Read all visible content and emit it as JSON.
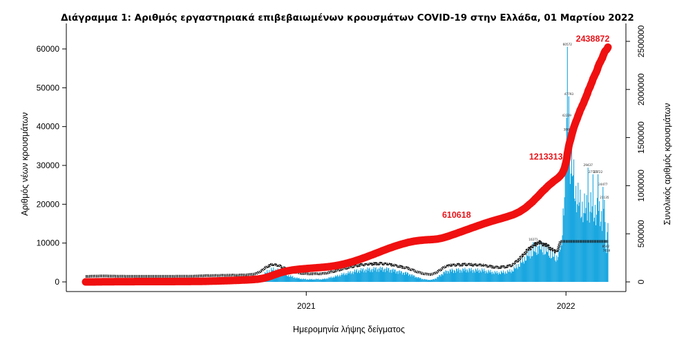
{
  "chart_data": {
    "type": "bar",
    "title": "Διάγραμμα 1: Αριθμός εργαστηριακά επιβεβαιωμένων κρουσμάτων COVID-19 στην Ελλάδα, 01 Μαρτίου 2022",
    "xlabel": "Ημερομηνία λήψης δείγματος",
    "ylabel": "Αριθμός νέων κρουσμάτων",
    "ylabel_right": "Συνολικός αριθμός κρουσμάτων",
    "x_range": [
      "2020-02-26",
      "2022-03-01"
    ],
    "ylim": [
      0,
      65000
    ],
    "ylim_right": [
      0,
      2600000
    ],
    "x_ticks": [
      {
        "date": "2021-01-01",
        "label": "2021"
      },
      {
        "date": "2022-01-01",
        "label": "2022"
      }
    ],
    "y_ticks": [
      "0",
      "10000",
      "20000",
      "30000",
      "40000",
      "50000",
      "60000"
    ],
    "y_ticks_right": [
      "0",
      "500000",
      "1000000",
      "1500000",
      "2000000",
      "2500000"
    ],
    "colors": {
      "bars": "#1aa7e0",
      "cumulative": "#f01010",
      "moving_average": "#1a1a1a"
    },
    "daily_new_cases_weekly": [
      {
        "week_start": "2020-02-26",
        "value": 5
      },
      {
        "week_start": "2020-03-04",
        "value": 45
      },
      {
        "week_start": "2020-03-11",
        "value": 95
      },
      {
        "week_start": "2020-03-18",
        "value": 110
      },
      {
        "week_start": "2020-03-25",
        "value": 95
      },
      {
        "week_start": "2020-04-01",
        "value": 70
      },
      {
        "week_start": "2020-04-08",
        "value": 45
      },
      {
        "week_start": "2020-04-15",
        "value": 30
      },
      {
        "week_start": "2020-04-22",
        "value": 20
      },
      {
        "week_start": "2020-04-29",
        "value": 15
      },
      {
        "week_start": "2020-05-06",
        "value": 10
      },
      {
        "week_start": "2020-05-13",
        "value": 12
      },
      {
        "week_start": "2020-05-20",
        "value": 10
      },
      {
        "week_start": "2020-05-27",
        "value": 10
      },
      {
        "week_start": "2020-06-03",
        "value": 12
      },
      {
        "week_start": "2020-06-10",
        "value": 15
      },
      {
        "week_start": "2020-06-17",
        "value": 20
      },
      {
        "week_start": "2020-06-24",
        "value": 25
      },
      {
        "week_start": "2020-07-01",
        "value": 30
      },
      {
        "week_start": "2020-07-08",
        "value": 35
      },
      {
        "week_start": "2020-07-15",
        "value": 40
      },
      {
        "week_start": "2020-07-22",
        "value": 55
      },
      {
        "week_start": "2020-07-29",
        "value": 90
      },
      {
        "week_start": "2020-08-05",
        "value": 150
      },
      {
        "week_start": "2020-08-12",
        "value": 210
      },
      {
        "week_start": "2020-08-19",
        "value": 230
      },
      {
        "week_start": "2020-08-26",
        "value": 240
      },
      {
        "week_start": "2020-09-02",
        "value": 260
      },
      {
        "week_start": "2020-09-09",
        "value": 290
      },
      {
        "week_start": "2020-09-16",
        "value": 320
      },
      {
        "week_start": "2020-09-23",
        "value": 330
      },
      {
        "week_start": "2020-09-30",
        "value": 360
      },
      {
        "week_start": "2020-10-07",
        "value": 420
      },
      {
        "week_start": "2020-10-14",
        "value": 520
      },
      {
        "week_start": "2020-10-21",
        "value": 800
      },
      {
        "week_start": "2020-10-28",
        "value": 1600
      },
      {
        "week_start": "2020-11-04",
        "value": 2600
      },
      {
        "week_start": "2020-11-11",
        "value": 3100
      },
      {
        "week_start": "2020-11-18",
        "value": 2900
      },
      {
        "week_start": "2020-11-25",
        "value": 2400
      },
      {
        "week_start": "2020-12-02",
        "value": 1700
      },
      {
        "week_start": "2020-12-09",
        "value": 1300
      },
      {
        "week_start": "2020-12-16",
        "value": 950
      },
      {
        "week_start": "2020-12-23",
        "value": 750
      },
      {
        "week_start": "2020-12-30",
        "value": 650
      },
      {
        "week_start": "2021-01-06",
        "value": 650
      },
      {
        "week_start": "2021-01-13",
        "value": 700
      },
      {
        "week_start": "2021-01-20",
        "value": 650
      },
      {
        "week_start": "2021-01-27",
        "value": 900
      },
      {
        "week_start": "2021-02-03",
        "value": 1200
      },
      {
        "week_start": "2021-02-10",
        "value": 1500
      },
      {
        "week_start": "2021-02-17",
        "value": 1900
      },
      {
        "week_start": "2021-02-24",
        "value": 2200
      },
      {
        "week_start": "2021-03-03",
        "value": 2500
      },
      {
        "week_start": "2021-03-10",
        "value": 2800
      },
      {
        "week_start": "2021-03-17",
        "value": 3000
      },
      {
        "week_start": "2021-03-24",
        "value": 3100
      },
      {
        "week_start": "2021-03-31",
        "value": 3200
      },
      {
        "week_start": "2021-04-07",
        "value": 3300
      },
      {
        "week_start": "2021-04-14",
        "value": 3300
      },
      {
        "week_start": "2021-04-21",
        "value": 3200
      },
      {
        "week_start": "2021-04-28",
        "value": 3000
      },
      {
        "week_start": "2021-05-05",
        "value": 2700
      },
      {
        "week_start": "2021-05-12",
        "value": 2400
      },
      {
        "week_start": "2021-05-19",
        "value": 2200
      },
      {
        "week_start": "2021-05-26",
        "value": 1700
      },
      {
        "week_start": "2021-06-02",
        "value": 1200
      },
      {
        "week_start": "2021-06-09",
        "value": 800
      },
      {
        "week_start": "2021-06-16",
        "value": 550
      },
      {
        "week_start": "2021-06-23",
        "value": 500
      },
      {
        "week_start": "2021-06-30",
        "value": 1000
      },
      {
        "week_start": "2021-07-07",
        "value": 2000
      },
      {
        "week_start": "2021-07-14",
        "value": 2700
      },
      {
        "week_start": "2021-07-21",
        "value": 2900
      },
      {
        "week_start": "2021-07-28",
        "value": 3000
      },
      {
        "week_start": "2021-08-04",
        "value": 3000
      },
      {
        "week_start": "2021-08-11",
        "value": 3100
      },
      {
        "week_start": "2021-08-18",
        "value": 3000
      },
      {
        "week_start": "2021-08-25",
        "value": 2900
      },
      {
        "week_start": "2021-09-01",
        "value": 3000
      },
      {
        "week_start": "2021-09-08",
        "value": 2700
      },
      {
        "week_start": "2021-09-15",
        "value": 2500
      },
      {
        "week_start": "2021-09-22",
        "value": 2300
      },
      {
        "week_start": "2021-09-29",
        "value": 2400
      },
      {
        "week_start": "2021-10-06",
        "value": 2500
      },
      {
        "week_start": "2021-10-13",
        "value": 2800
      },
      {
        "week_start": "2021-10-20",
        "value": 3800
      },
      {
        "week_start": "2021-10-27",
        "value": 5000
      },
      {
        "week_start": "2021-11-03",
        "value": 6500
      },
      {
        "week_start": "2021-11-10",
        "value": 7500
      },
      {
        "week_start": "2021-11-17",
        "value": 8300
      },
      {
        "week_start": "2021-11-24",
        "value": 8500
      },
      {
        "week_start": "2021-12-01",
        "value": 8000
      },
      {
        "week_start": "2021-12-08",
        "value": 7000
      },
      {
        "week_start": "2021-12-15",
        "value": 6000
      },
      {
        "week_start": "2021-12-22",
        "value": 9000
      },
      {
        "week_start": "2021-12-29",
        "value": 32000
      },
      {
        "week_start": "2022-01-05",
        "value": 30000
      },
      {
        "week_start": "2022-01-12",
        "value": 22000
      },
      {
        "week_start": "2022-01-19",
        "value": 19000
      },
      {
        "week_start": "2022-01-26",
        "value": 18500
      },
      {
        "week_start": "2022-02-02",
        "value": 19000
      },
      {
        "week_start": "2022-02-09",
        "value": 18000
      },
      {
        "week_start": "2022-02-16",
        "value": 17000
      },
      {
        "week_start": "2022-02-23",
        "value": 14000
      }
    ],
    "highlighted_days": [
      {
        "date": "2022-01-03",
        "value": 60572
      },
      {
        "date": "2022-01-05",
        "value": 47793
      },
      {
        "date": "2022-01-02",
        "value": 42239
      },
      {
        "date": "2022-01-04",
        "value": 38602
      },
      {
        "date": "2022-02-01",
        "value": 29437
      },
      {
        "date": "2022-02-08",
        "value": 27723
      },
      {
        "date": "2022-02-15",
        "value": 27722
      },
      {
        "date": "2022-02-22",
        "value": 24477
      },
      {
        "date": "2022-02-24",
        "value": 21135
      },
      {
        "date": "2021-11-16",
        "value": 10271
      },
      {
        "date": "2021-11-24",
        "value": 9220
      },
      {
        "date": "2022-02-26",
        "value": 8542
      },
      {
        "date": "2022-02-27",
        "value": 7418
      }
    ],
    "cumulative_annotations": [
      {
        "date": "2021-09-10",
        "value": 610618,
        "label": "610618"
      },
      {
        "date": "2021-12-31",
        "value": 1213313,
        "label": "1213313"
      },
      {
        "date": "2022-03-01",
        "value": 2438872,
        "label": "2438872"
      }
    ]
  }
}
